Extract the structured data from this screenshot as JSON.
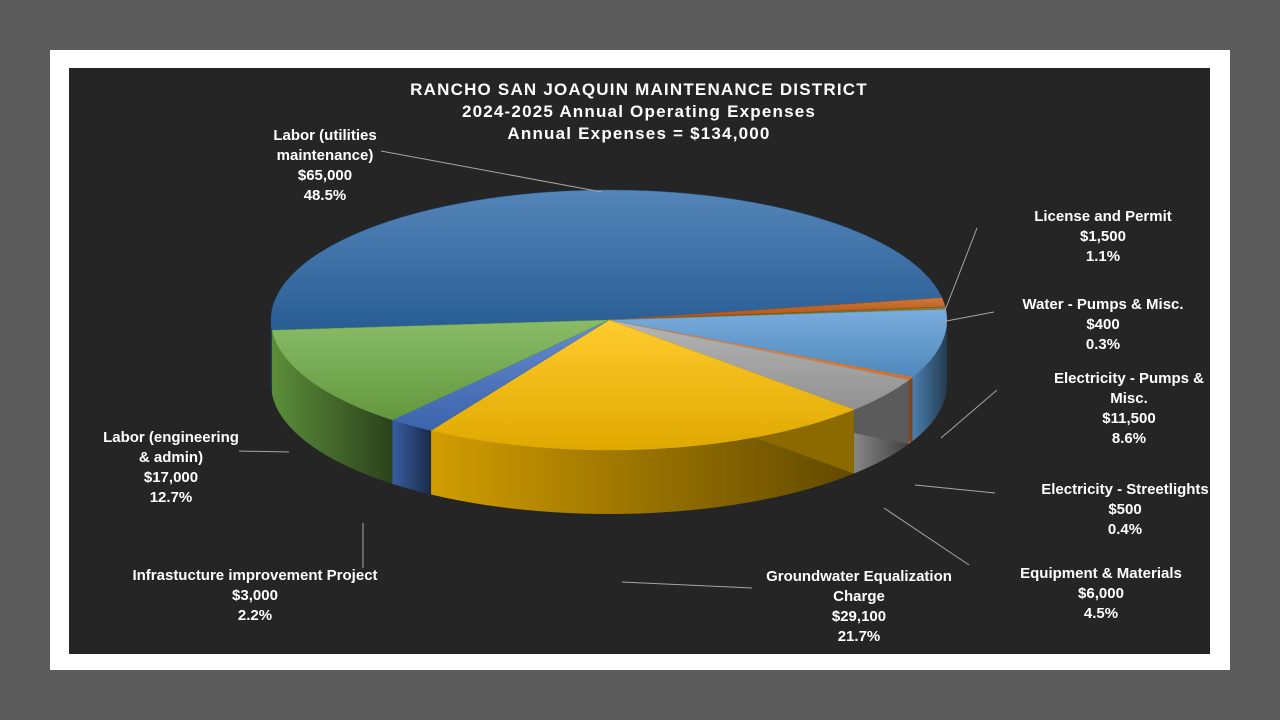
{
  "chart_data": {
    "type": "pie",
    "title": [
      "RANCHO SAN JOAQUIN MAINTENANCE DISTRICT",
      "2024-2025 Annual Operating Expenses",
      "Annual Expenses = $134,000"
    ],
    "total": 134000,
    "legend": "none",
    "slices": [
      {
        "name": "Labor (utilities maintenance)",
        "value": 65000,
        "percent": 48.5,
        "color": "#2E6AA8",
        "label_lines": [
          "Labor (utilities",
          "maintenance)",
          "$65,000",
          "48.5%"
        ]
      },
      {
        "name": "License and Permit",
        "value": 1500,
        "percent": 1.1,
        "color": "#C55A11",
        "label_lines": [
          "License and Permit",
          "$1,500",
          "1.1%"
        ]
      },
      {
        "name": "Water - Pumps & Misc.",
        "value": 400,
        "percent": 0.3,
        "color": "#7F6000",
        "label_lines": [
          "Water - Pumps & Misc.",
          "$400",
          "0.3%"
        ]
      },
      {
        "name": "Electricity - Pumps & Misc.",
        "value": 11500,
        "percent": 8.6,
        "color": "#5B9BD5",
        "label_lines": [
          "Electricity - Pumps &",
          "Misc.",
          "$11,500",
          "8.6%"
        ]
      },
      {
        "name": "Electricity - Streetlights",
        "value": 500,
        "percent": 0.4,
        "color": "#ED7D31",
        "label_lines": [
          "Electricity - Streetlights",
          "$500",
          "0.4%"
        ]
      },
      {
        "name": "Equipment & Materials",
        "value": 6000,
        "percent": 4.5,
        "color": "#A5A5A5",
        "label_lines": [
          "Equipment & Materials",
          "$6,000",
          "4.5%"
        ]
      },
      {
        "name": "Groundwater Equalization Charge",
        "value": 29100,
        "percent": 21.7,
        "color": "#FFC000",
        "label_lines": [
          "Groundwater Equalization",
          "Charge",
          "$29,100",
          "21.7%"
        ]
      },
      {
        "name": "Infrastucture improvement Project",
        "value": 3000,
        "percent": 2.2,
        "color": "#4472C4",
        "label_lines": [
          "Infrastucture improvement Project",
          "$3,000",
          "2.2%"
        ]
      },
      {
        "name": "Labor (engineering & admin)",
        "value": 17000,
        "percent": 12.7,
        "color": "#70AD47",
        "label_lines": [
          "Labor (engineering",
          "& admin)",
          "$17,000",
          "12.7%"
        ]
      }
    ]
  }
}
